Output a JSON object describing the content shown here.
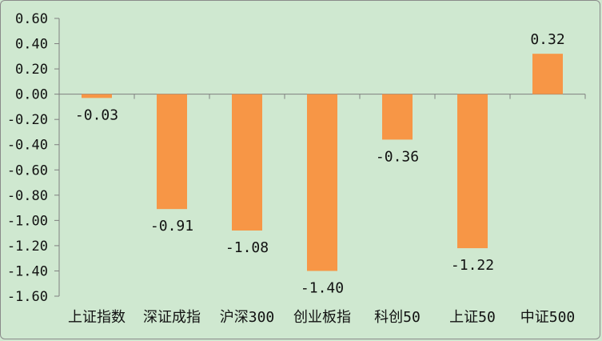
{
  "chart_data": {
    "type": "bar",
    "title": "",
    "xlabel": "",
    "ylabel": "",
    "categories": [
      "上证指数",
      "深证成指",
      "沪深300",
      "创业板指",
      "科创50",
      "上证50",
      "中证500"
    ],
    "values": [
      -0.03,
      -0.91,
      -1.08,
      -1.4,
      -0.36,
      -1.22,
      0.32
    ],
    "data_labels": [
      "-0.03",
      "-0.91",
      "-1.08",
      "-1.40",
      "-0.36",
      "-1.22",
      "0.32"
    ],
    "ylim": [
      -1.6,
      0.6
    ],
    "y_ticks": [
      0.6,
      0.4,
      0.2,
      0.0,
      -0.2,
      -0.4,
      -0.6,
      -0.8,
      -1.0,
      -1.2,
      -1.4,
      -1.6
    ],
    "y_tick_labels": [
      "0.60",
      "0.40",
      "0.20",
      "0.00",
      "-0.20",
      "-0.40",
      "-0.60",
      "-0.80",
      "-1.00",
      "-1.20",
      "-1.40",
      "-1.60"
    ],
    "grid": false,
    "legend": "none",
    "colors": {
      "bar": "#f79646",
      "background": "#cfe8d0",
      "axis": "#7f7f7f"
    }
  }
}
